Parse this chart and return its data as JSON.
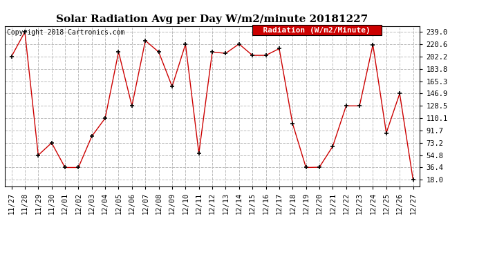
{
  "title": "Solar Radiation Avg per Day W/m2/minute 20181227",
  "copyright_text": "Copyright 2018 Cartronics.com",
  "legend_label": "Radiation (W/m2/Minute)",
  "dates": [
    "11/27",
    "11/28",
    "11/29",
    "11/30",
    "12/01",
    "12/02",
    "12/03",
    "12/04",
    "12/05",
    "12/06",
    "12/07",
    "12/08",
    "12/09",
    "12/10",
    "12/11",
    "12/12",
    "12/13",
    "12/14",
    "12/15",
    "12/16",
    "12/17",
    "12/18",
    "12/19",
    "12/20",
    "12/21",
    "12/22",
    "12/23",
    "12/24",
    "12/25",
    "12/26",
    "12/27"
  ],
  "values": [
    202.2,
    239.0,
    54.8,
    73.2,
    36.4,
    36.4,
    83.0,
    110.1,
    209.0,
    128.5,
    226.0,
    209.0,
    157.5,
    220.6,
    57.5,
    209.0,
    207.0,
    221.0,
    204.0,
    204.0,
    214.0,
    102.0,
    36.4,
    36.8,
    68.0,
    128.5,
    128.5,
    220.0,
    88.0,
    146.9,
    18.0
  ],
  "line_color": "#cc0000",
  "marker": "+",
  "marker_size": 5,
  "marker_color": "black",
  "bg_color": "#ffffff",
  "plot_bg_color": "#ffffff",
  "grid_color": "#bbbbbb",
  "grid_style": "--",
  "yticks": [
    18.0,
    36.4,
    54.8,
    73.2,
    91.7,
    110.1,
    128.5,
    146.9,
    165.3,
    183.8,
    202.2,
    220.6,
    239.0
  ],
  "ylim": [
    8,
    248
  ],
  "title_fontsize": 11,
  "tick_fontsize": 7.5,
  "copyright_fontsize": 7,
  "legend_bg": "#cc0000",
  "legend_text_color": "#ffffff",
  "legend_fontsize": 8
}
